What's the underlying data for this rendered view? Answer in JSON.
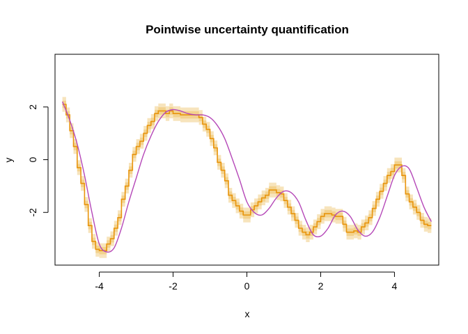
{
  "chart_data": {
    "type": "line",
    "title": "Pointwise uncertainty quantification",
    "xlabel": "x",
    "ylabel": "y",
    "xlim": [
      -5.2,
      5.2
    ],
    "ylim": [
      -4.0,
      4.0
    ],
    "x_ticks": [
      -4,
      -2,
      0,
      2,
      4
    ],
    "y_ticks": [
      -2,
      0,
      2
    ],
    "x_tick_labels": [
      "-4",
      "-2",
      "0",
      "2",
      "4"
    ],
    "y_tick_labels": [
      "-2",
      "0",
      "2"
    ],
    "grid": false,
    "legend": "none",
    "colors": {
      "step_estimate": "#e8940c",
      "band_outer": "#f6dfb0",
      "band_inner": "#f2cf85",
      "true_function": "#b548b8"
    },
    "series": [
      {
        "role": "true_function",
        "x": [
          -5.0,
          -4.8,
          -4.6,
          -4.4,
          -4.2,
          -4.0,
          -3.8,
          -3.6,
          -3.4,
          -3.2,
          -3.0,
          -2.8,
          -2.6,
          -2.4,
          -2.2,
          -2.0,
          -1.8,
          -1.6,
          -1.4,
          -1.2,
          -1.0,
          -0.8,
          -0.6,
          -0.4,
          -0.2,
          0.0,
          0.2,
          0.4,
          0.6,
          0.8,
          1.0,
          1.2,
          1.4,
          1.6,
          1.8,
          2.0,
          2.2,
          2.4,
          2.6,
          2.8,
          3.0,
          3.2,
          3.4,
          3.6,
          3.8,
          4.0,
          4.2,
          4.4,
          4.6,
          4.8,
          5.0
        ],
        "y": [
          2.2,
          1.5,
          0.6,
          -0.6,
          -2.0,
          -3.2,
          -3.5,
          -3.35,
          -2.6,
          -1.6,
          -0.7,
          0.2,
          0.9,
          1.45,
          1.8,
          1.9,
          1.85,
          1.75,
          1.7,
          1.7,
          1.6,
          1.3,
          0.8,
          0.05,
          -0.75,
          -1.6,
          -2.0,
          -2.1,
          -1.85,
          -1.45,
          -1.2,
          -1.25,
          -1.6,
          -2.3,
          -2.85,
          -2.9,
          -2.6,
          -2.1,
          -1.95,
          -2.15,
          -2.65,
          -2.9,
          -2.75,
          -2.2,
          -1.4,
          -0.6,
          -0.25,
          -0.35,
          -1.05,
          -1.8,
          -2.35
        ]
      },
      {
        "role": "step_estimate",
        "x": [
          -5.0,
          -4.9,
          -4.8,
          -4.7,
          -4.6,
          -4.5,
          -4.4,
          -4.3,
          -4.2,
          -4.1,
          -4.0,
          -3.9,
          -3.8,
          -3.7,
          -3.6,
          -3.5,
          -3.4,
          -3.3,
          -3.2,
          -3.1,
          -3.0,
          -2.9,
          -2.8,
          -2.7,
          -2.6,
          -2.5,
          -2.4,
          -2.3,
          -2.2,
          -2.1,
          -2.0,
          -1.9,
          -1.8,
          -1.7,
          -1.6,
          -1.5,
          -1.4,
          -1.3,
          -1.2,
          -1.1,
          -1.0,
          -0.9,
          -0.8,
          -0.7,
          -0.6,
          -0.5,
          -0.4,
          -0.3,
          -0.2,
          -0.1,
          0.0,
          0.1,
          0.2,
          0.3,
          0.4,
          0.5,
          0.6,
          0.7,
          0.8,
          0.9,
          1.0,
          1.1,
          1.2,
          1.3,
          1.4,
          1.5,
          1.6,
          1.7,
          1.8,
          1.9,
          2.0,
          2.1,
          2.2,
          2.3,
          2.4,
          2.5,
          2.6,
          2.7,
          2.8,
          2.9,
          3.0,
          3.1,
          3.2,
          3.3,
          3.4,
          3.5,
          3.6,
          3.7,
          3.8,
          3.9,
          4.0,
          4.1,
          4.2,
          4.3,
          4.4,
          4.5,
          4.6,
          4.7,
          4.8,
          4.9,
          5.0
        ],
        "y": [
          2.1,
          1.7,
          1.1,
          0.5,
          -0.3,
          -0.9,
          -1.7,
          -2.5,
          -3.1,
          -3.4,
          -3.45,
          -3.45,
          -3.2,
          -3.0,
          -2.6,
          -2.2,
          -1.5,
          -1.0,
          -0.4,
          0.2,
          0.5,
          0.7,
          1.0,
          1.3,
          1.45,
          1.75,
          1.85,
          1.85,
          1.75,
          1.85,
          1.75,
          1.75,
          1.7,
          1.7,
          1.7,
          1.7,
          1.7,
          1.6,
          1.35,
          1.15,
          0.8,
          0.45,
          -0.1,
          -0.4,
          -0.8,
          -1.35,
          -1.55,
          -1.75,
          -1.95,
          -2.1,
          -2.1,
          -1.9,
          -1.75,
          -1.6,
          -1.45,
          -1.35,
          -1.15,
          -1.15,
          -1.25,
          -1.3,
          -1.55,
          -1.8,
          -2.05,
          -2.3,
          -2.6,
          -2.75,
          -2.85,
          -2.75,
          -2.55,
          -2.35,
          -2.15,
          -2.05,
          -2.05,
          -2.1,
          -2.15,
          -2.15,
          -2.45,
          -2.75,
          -2.75,
          -2.7,
          -2.75,
          -2.55,
          -2.4,
          -2.2,
          -1.85,
          -1.5,
          -1.2,
          -0.9,
          -0.6,
          -0.45,
          -0.2,
          -0.2,
          -0.6,
          -1.3,
          -1.6,
          -1.8,
          -2.0,
          -2.3,
          -2.45,
          -2.5,
          -2.5
        ]
      }
    ]
  }
}
